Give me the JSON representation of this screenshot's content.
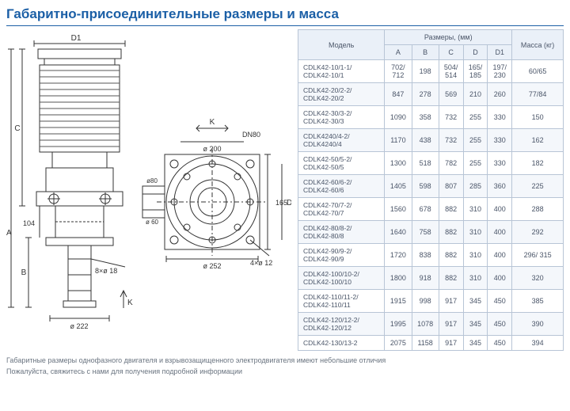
{
  "title": "Габаритно-присоединительные размеры и масса",
  "diagram": {
    "dim_labels": [
      "D1",
      "C",
      "A",
      "B",
      "D",
      "K"
    ],
    "callouts": [
      "DN80",
      "ø 200",
      "ø80",
      "ø 60",
      "ø 252",
      "4×ø 12",
      "165",
      "104",
      "8×ø 18",
      "ø 222",
      "K"
    ],
    "stroke": "#333333",
    "hatch": "#555555"
  },
  "table": {
    "header_model": "Модель",
    "header_dimensions": "Размеры, (мм)",
    "header_mass": "Масса (кг)",
    "cols": [
      "A",
      "B",
      "C",
      "D",
      "D1"
    ],
    "rows": [
      {
        "model": "CDLK42-10/1-1/\nCDLK42-10/1",
        "A": "702/\n712",
        "B": "198",
        "C": "504/\n514",
        "D": "165/\n185",
        "D1": "197/\n230",
        "mass": "60/65"
      },
      {
        "model": "CDLK42-20/2-2/\nCDLK42-20/2",
        "A": "847",
        "B": "278",
        "C": "569",
        "D": "210",
        "D1": "260",
        "mass": "77/84"
      },
      {
        "model": "CDLK42-30/3-2/\nCDLK42-30/3",
        "A": "1090",
        "B": "358",
        "C": "732",
        "D": "255",
        "D1": "330",
        "mass": "150"
      },
      {
        "model": "CDLK4240/4-2/\nCDLK4240/4",
        "A": "1170",
        "B": "438",
        "C": "732",
        "D": "255",
        "D1": "330",
        "mass": "162"
      },
      {
        "model": "CDLK42-50/5-2/\nCDLK42-50/5",
        "A": "1300",
        "B": "518",
        "C": "782",
        "D": "255",
        "D1": "330",
        "mass": "182"
      },
      {
        "model": "CDLK42-60/6-2/\nCDLK42-60/6",
        "A": "1405",
        "B": "598",
        "C": "807",
        "D": "285",
        "D1": "360",
        "mass": "225"
      },
      {
        "model": "CDLK42-70/7-2/\nCDLK42-70/7",
        "A": "1560",
        "B": "678",
        "C": "882",
        "D": "310",
        "D1": "400",
        "mass": "288"
      },
      {
        "model": "CDLK42-80/8-2/\nCDLK42-80/8",
        "A": "1640",
        "B": "758",
        "C": "882",
        "D": "310",
        "D1": "400",
        "mass": "292"
      },
      {
        "model": "CDLK42-90/9-2/\nCDLK42-90/9",
        "A": "1720",
        "B": "838",
        "C": "882",
        "D": "310",
        "D1": "400",
        "mass": "296/ 315"
      },
      {
        "model": "CDLK42-100/10-2/\nCDLK42-100/10",
        "A": "1800",
        "B": "918",
        "C": "882",
        "D": "310",
        "D1": "400",
        "mass": "320"
      },
      {
        "model": "CDLK42-110/11-2/\nCDLK42-110/11",
        "A": "1915",
        "B": "998",
        "C": "917",
        "D": "345",
        "D1": "450",
        "mass": "385"
      },
      {
        "model": "CDLK42-120/12-2/\nCDLK42-120/12",
        "A": "1995",
        "B": "1078",
        "C": "917",
        "D": "345",
        "D1": "450",
        "mass": "390"
      },
      {
        "model": "CDLK42-130/13-2",
        "A": "2075",
        "B": "1158",
        "C": "917",
        "D": "345",
        "D1": "450",
        "mass": "394"
      }
    ]
  },
  "footnotes": [
    "Габаритные размеры однофазного двигателя и взрывозащищенного электродвигателя имеют небольшие отличия",
    "Пожалуйста, свяжитесь с нами для получения подробной информации"
  ],
  "colors": {
    "accent": "#1b5fa6",
    "border": "#b8c5d6",
    "th_bg": "#eaf0f8",
    "row_alt": "#f4f7fb",
    "text": "#4a5568"
  }
}
